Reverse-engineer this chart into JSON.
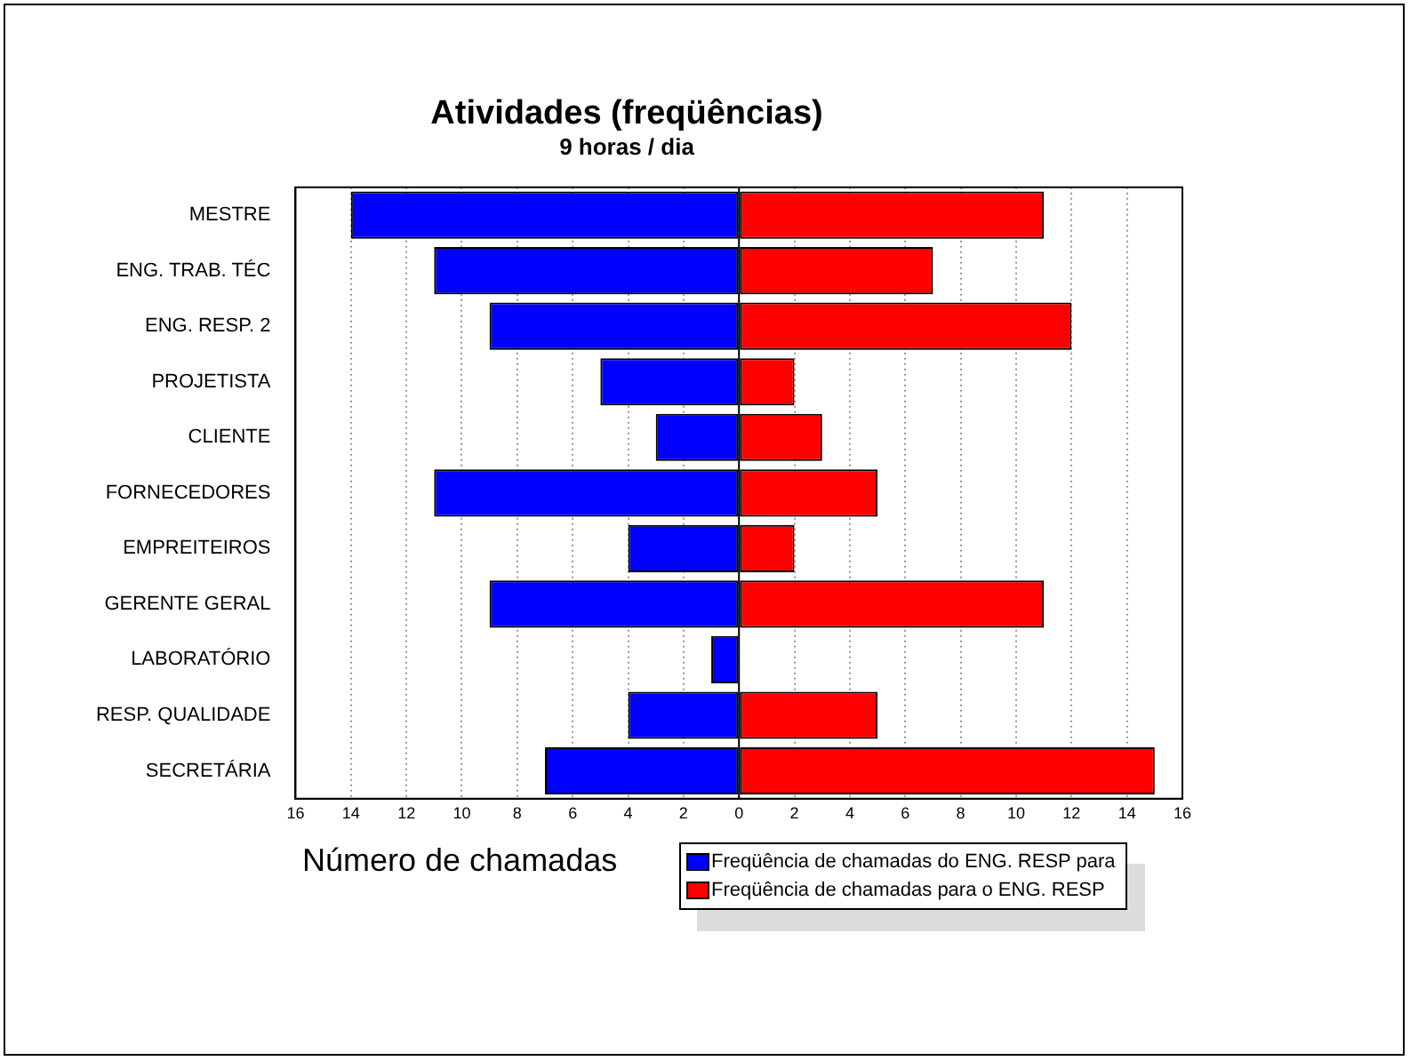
{
  "chart_data": {
    "type": "bar",
    "orientation": "horizontal",
    "stacked": true,
    "title": "Atividades (freqüências)",
    "subtitle": "9 horas / dia",
    "xlabel": "Número de chamadas",
    "categories": [
      "MESTRE",
      "ENG. TRAB. TÉC",
      "ENG. RESP. 2",
      "PROJETISTA",
      "CLIENTE",
      "FORNECEDORES",
      "EMPREITEIROS",
      "GERENTE GERAL",
      "LABORATÓRIO",
      "RESP. QUALIDADE",
      "SECRETÁRIA"
    ],
    "series": [
      {
        "name": "Freqüência de chamadas do ENG. RESP para",
        "color": "#0000ff",
        "values": [
          -14,
          -11,
          -9,
          -5,
          -3,
          -11,
          -4,
          -9,
          -1,
          -4,
          -7
        ]
      },
      {
        "name": "Freqüência de chamadas para o ENG. RESP",
        "color": "#ff0000",
        "values": [
          11,
          7,
          12,
          2,
          3,
          5,
          2,
          11,
          0,
          5,
          15
        ]
      }
    ],
    "xlim": [
      -16,
      16
    ],
    "xticks": [
      {
        "value": -16,
        "label": "16"
      },
      {
        "value": -14,
        "label": "14"
      },
      {
        "value": -12,
        "label": "12"
      },
      {
        "value": -10,
        "label": "10"
      },
      {
        "value": -8,
        "label": "8"
      },
      {
        "value": -6,
        "label": "6"
      },
      {
        "value": -4,
        "label": "4"
      },
      {
        "value": -2,
        "label": "2"
      },
      0,
      2,
      4,
      6,
      8,
      10,
      12,
      14,
      16
    ],
    "grid": "x",
    "legend": "bottom"
  }
}
